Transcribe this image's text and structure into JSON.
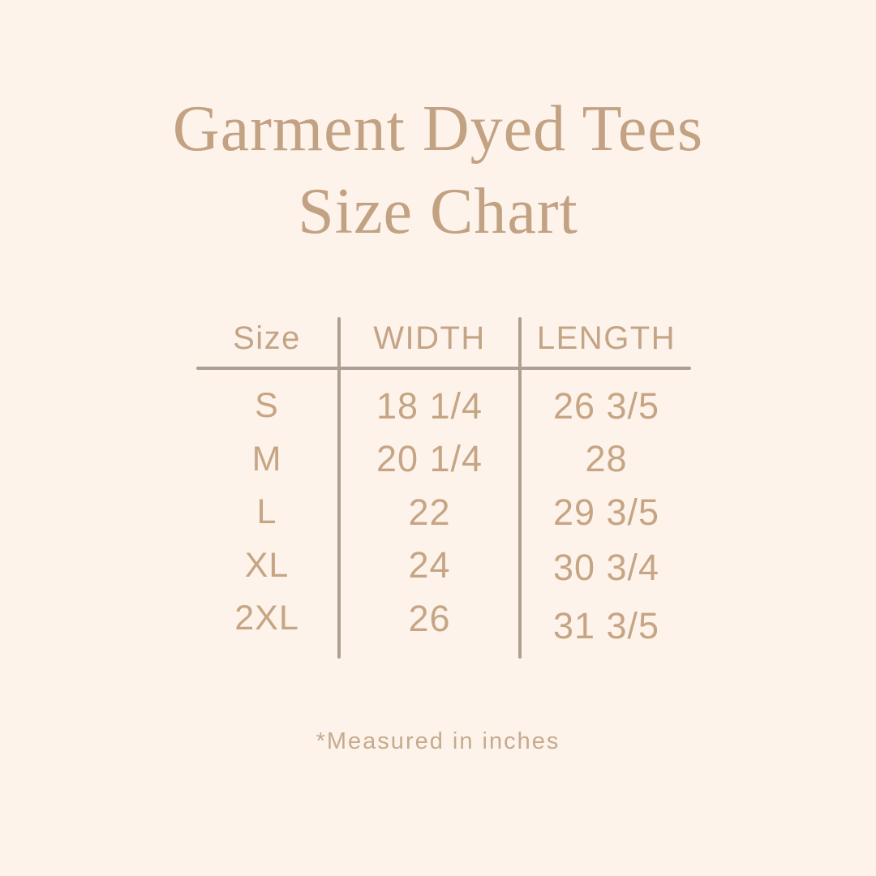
{
  "page": {
    "background_color": "#fdf3ea",
    "accent_text_color": "#c2a283",
    "table_text_color": "#c6a585",
    "divider_line_color": "#ada092"
  },
  "title": {
    "line1": "Garment Dyed Tees",
    "line2": "Size Chart"
  },
  "footnote": {
    "text": "*Measured in inches"
  },
  "chart_data": {
    "type": "table",
    "title": "Garment Dyed Tees Size Chart",
    "columns": [
      "Size",
      "WIDTH",
      "LENGTH"
    ],
    "rows": [
      [
        "S",
        "18 1/4",
        "26 3/5"
      ],
      [
        "M",
        "20 1/4",
        "28"
      ],
      [
        "L",
        "22",
        "29 3/5"
      ],
      [
        "XL",
        "24",
        "30 3/4"
      ],
      [
        "2XL",
        "26",
        "31 3/5"
      ]
    ],
    "units": "inches",
    "footnote": "*Measured in inches",
    "layout": {
      "grid": "two vertical column dividers and one horizontal rule under header",
      "alignment": "all cells centered"
    }
  }
}
